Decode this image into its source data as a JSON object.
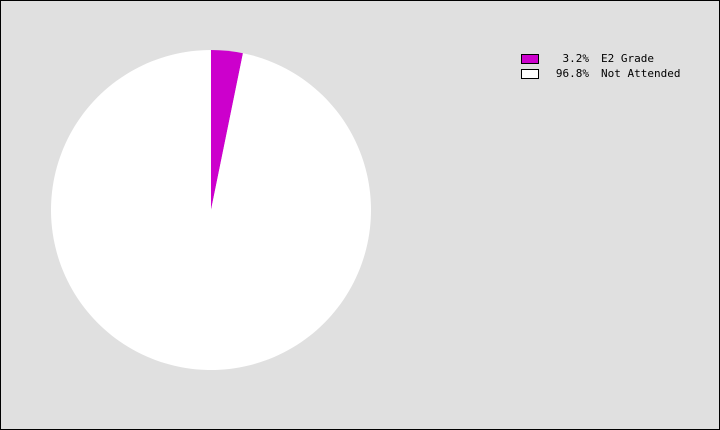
{
  "chart_data": {
    "type": "pie",
    "title": "",
    "categories": [
      "E2 Grade",
      "Not Attended"
    ],
    "values": [
      3.2,
      96.8
    ],
    "value_labels": [
      "3.2%",
      "96.8%"
    ],
    "colors": [
      "#cc00cc",
      "#ffffff"
    ],
    "legend_placement": "top-right",
    "start_angle": "12 o'clock, clockwise",
    "background_color": "#e0e0e0"
  }
}
